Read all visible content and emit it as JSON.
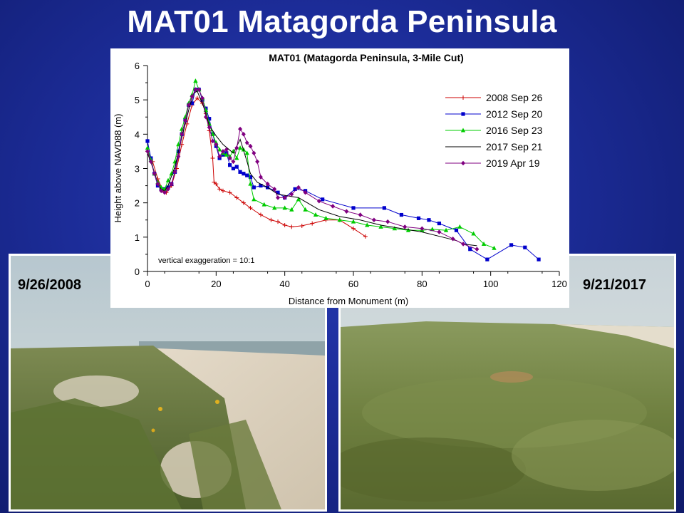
{
  "slide": {
    "title": "MAT01 Matagorda Peninsula"
  },
  "photos": {
    "left": {
      "date_label": "9/26/2008"
    },
    "right": {
      "date_label": "9/21/2017"
    }
  },
  "chart_data": {
    "type": "line",
    "title": "MAT01 (Matagorda Peninsula, 3-Mile Cut)",
    "xlabel": "Distance from Monument (m)",
    "ylabel": "Height above NAVD88 (m)",
    "xlim": [
      0,
      120
    ],
    "ylim": [
      0,
      6
    ],
    "xticks": [
      0,
      20,
      40,
      60,
      80,
      100,
      120
    ],
    "yticks": [
      0,
      1,
      2,
      3,
      4,
      5,
      6
    ],
    "grid": false,
    "legend_position": "top-right",
    "annotation": "vertical exaggeration = 10:1",
    "series": [
      {
        "name": "2008 Sep 26",
        "color": "#cc0000",
        "marker": "plus",
        "points": [
          [
            0,
            3.5
          ],
          [
            1.5,
            3.2
          ],
          [
            3,
            2.7
          ],
          [
            4.5,
            2.35
          ],
          [
            5.5,
            2.3
          ],
          [
            7,
            2.5
          ],
          [
            8.5,
            3.0
          ],
          [
            10,
            3.7
          ],
          [
            11.5,
            4.3
          ],
          [
            13,
            4.85
          ],
          [
            14.5,
            5.05
          ],
          [
            16,
            4.9
          ],
          [
            17,
            4.6
          ],
          [
            18,
            4.1
          ],
          [
            19,
            3.3
          ],
          [
            19.4,
            2.6
          ],
          [
            20,
            2.55
          ],
          [
            21,
            2.4
          ],
          [
            22,
            2.35
          ],
          [
            24,
            2.3
          ],
          [
            26,
            2.15
          ],
          [
            28,
            2.0
          ],
          [
            30,
            1.85
          ],
          [
            33,
            1.65
          ],
          [
            36,
            1.5
          ],
          [
            38,
            1.45
          ],
          [
            40,
            1.35
          ],
          [
            42,
            1.3
          ],
          [
            45,
            1.33
          ],
          [
            48,
            1.4
          ],
          [
            52,
            1.5
          ],
          [
            56,
            1.5
          ],
          [
            60,
            1.25
          ],
          [
            63.5,
            1.02
          ]
        ]
      },
      {
        "name": "2012 Sep 20",
        "color": "#0000cc",
        "marker": "square",
        "points": [
          [
            0,
            3.8
          ],
          [
            1,
            3.3
          ],
          [
            2,
            2.85
          ],
          [
            3,
            2.5
          ],
          [
            4,
            2.4
          ],
          [
            5,
            2.4
          ],
          [
            6,
            2.45
          ],
          [
            7,
            2.55
          ],
          [
            8,
            2.9
          ],
          [
            9,
            3.5
          ],
          [
            10,
            4.0
          ],
          [
            11,
            4.4
          ],
          [
            12,
            4.85
          ],
          [
            13,
            4.9
          ],
          [
            14,
            5.3
          ],
          [
            15,
            5.3
          ],
          [
            16,
            5.0
          ],
          [
            17,
            4.75
          ],
          [
            18,
            4.45
          ],
          [
            19,
            4.0
          ],
          [
            20,
            3.65
          ],
          [
            21,
            3.3
          ],
          [
            22,
            3.4
          ],
          [
            23,
            3.45
          ],
          [
            24,
            3.1
          ],
          [
            25,
            3.0
          ],
          [
            26,
            3.05
          ],
          [
            27,
            2.9
          ],
          [
            28,
            2.85
          ],
          [
            29,
            2.8
          ],
          [
            30,
            2.75
          ],
          [
            31,
            2.45
          ],
          [
            33,
            2.5
          ],
          [
            35,
            2.45
          ],
          [
            38,
            2.3
          ],
          [
            40,
            2.15
          ],
          [
            43,
            2.4
          ],
          [
            46,
            2.35
          ],
          [
            51,
            2.1
          ],
          [
            60,
            1.85
          ],
          [
            69,
            1.85
          ],
          [
            74,
            1.65
          ],
          [
            79,
            1.55
          ],
          [
            82,
            1.5
          ],
          [
            85,
            1.4
          ],
          [
            90,
            1.2
          ],
          [
            94,
            0.65
          ],
          [
            99,
            0.35
          ],
          [
            106,
            0.77
          ],
          [
            110,
            0.7
          ],
          [
            114,
            0.35
          ]
        ]
      },
      {
        "name": "2016 Sep 23",
        "color": "#00cc00",
        "marker": "triangle",
        "points": [
          [
            0,
            3.6
          ],
          [
            1,
            3.25
          ],
          [
            2,
            2.85
          ],
          [
            3,
            2.6
          ],
          [
            4,
            2.45
          ],
          [
            5,
            2.4
          ],
          [
            6,
            2.65
          ],
          [
            7,
            2.85
          ],
          [
            8,
            3.2
          ],
          [
            9,
            3.7
          ],
          [
            10,
            4.15
          ],
          [
            11,
            4.5
          ],
          [
            12,
            4.9
          ],
          [
            13,
            5.15
          ],
          [
            14,
            5.55
          ],
          [
            15,
            5.3
          ],
          [
            16,
            5.05
          ],
          [
            17,
            4.7
          ],
          [
            18,
            4.3
          ],
          [
            19,
            4.0
          ],
          [
            20,
            3.75
          ],
          [
            21,
            3.55
          ],
          [
            22,
            3.45
          ],
          [
            23,
            3.4
          ],
          [
            24,
            3.35
          ],
          [
            25,
            3.5
          ],
          [
            26,
            3.3
          ],
          [
            27,
            3.6
          ],
          [
            28,
            3.55
          ],
          [
            29,
            3.45
          ],
          [
            30,
            2.55
          ],
          [
            31,
            2.1
          ],
          [
            34,
            1.95
          ],
          [
            37,
            1.85
          ],
          [
            40,
            1.85
          ],
          [
            42,
            1.8
          ],
          [
            44,
            2.1
          ],
          [
            46,
            1.8
          ],
          [
            49,
            1.65
          ],
          [
            52,
            1.55
          ],
          [
            56,
            1.5
          ],
          [
            60,
            1.45
          ],
          [
            64,
            1.35
          ],
          [
            68,
            1.3
          ],
          [
            72,
            1.25
          ],
          [
            76,
            1.2
          ],
          [
            80,
            1.2
          ],
          [
            83,
            1.23
          ],
          [
            87,
            1.2
          ],
          [
            91,
            1.3
          ],
          [
            95,
            1.1
          ],
          [
            98,
            0.8
          ],
          [
            101,
            0.68
          ]
        ]
      },
      {
        "name": "2017 Sep 21",
        "color": "#000000",
        "marker": "none",
        "points": [
          [
            0,
            3.45
          ],
          [
            2,
            2.9
          ],
          [
            3,
            2.55
          ],
          [
            4,
            2.4
          ],
          [
            5,
            2.35
          ],
          [
            6,
            2.5
          ],
          [
            8,
            3.05
          ],
          [
            10,
            3.9
          ],
          [
            12,
            4.7
          ],
          [
            13.5,
            5.2
          ],
          [
            14.5,
            5.25
          ],
          [
            16,
            4.9
          ],
          [
            17,
            4.6
          ],
          [
            18,
            4.25
          ],
          [
            20,
            3.95
          ],
          [
            22,
            3.7
          ],
          [
            25,
            3.45
          ],
          [
            27,
            3.85
          ],
          [
            29,
            3.2
          ],
          [
            30,
            2.85
          ],
          [
            32,
            2.6
          ],
          [
            35,
            2.45
          ],
          [
            38,
            2.25
          ],
          [
            41,
            2.2
          ],
          [
            44,
            2.15
          ],
          [
            50,
            1.8
          ],
          [
            56,
            1.6
          ],
          [
            62,
            1.5
          ],
          [
            68,
            1.35
          ],
          [
            74,
            1.25
          ],
          [
            80,
            1.15
          ],
          [
            86,
            1.0
          ],
          [
            90,
            0.9
          ],
          [
            92,
            0.8
          ],
          [
            96,
            0.75
          ]
        ]
      },
      {
        "name": "2019 Apr 19",
        "color": "#800080",
        "marker": "diamond",
        "points": [
          [
            0,
            3.5
          ],
          [
            1,
            3.2
          ],
          [
            2,
            2.85
          ],
          [
            3,
            2.55
          ],
          [
            4,
            2.35
          ],
          [
            5,
            2.3
          ],
          [
            6,
            2.4
          ],
          [
            7,
            2.55
          ],
          [
            8,
            2.9
          ],
          [
            9,
            3.35
          ],
          [
            10,
            4.0
          ],
          [
            11,
            4.4
          ],
          [
            12,
            4.85
          ],
          [
            13,
            5.1
          ],
          [
            14,
            5.3
          ],
          [
            15,
            5.3
          ],
          [
            16,
            5.05
          ],
          [
            17,
            4.5
          ],
          [
            18,
            4.2
          ],
          [
            19,
            3.8
          ],
          [
            20,
            3.7
          ],
          [
            21,
            3.35
          ],
          [
            22,
            3.5
          ],
          [
            23,
            3.55
          ],
          [
            24,
            3.3
          ],
          [
            25,
            3.2
          ],
          [
            26,
            3.6
          ],
          [
            27,
            4.15
          ],
          [
            28,
            4.0
          ],
          [
            29,
            3.75
          ],
          [
            30,
            3.65
          ],
          [
            31,
            3.45
          ],
          [
            32,
            3.2
          ],
          [
            33,
            2.75
          ],
          [
            35,
            2.55
          ],
          [
            37,
            2.4
          ],
          [
            38,
            2.15
          ],
          [
            40,
            2.15
          ],
          [
            42,
            2.25
          ],
          [
            44,
            2.45
          ],
          [
            46,
            2.3
          ],
          [
            50,
            2.05
          ],
          [
            54,
            1.9
          ],
          [
            58,
            1.75
          ],
          [
            62,
            1.65
          ],
          [
            66,
            1.5
          ],
          [
            70,
            1.45
          ],
          [
            75,
            1.3
          ],
          [
            80,
            1.25
          ],
          [
            85,
            1.15
          ],
          [
            89,
            0.95
          ],
          [
            92,
            0.8
          ],
          [
            96,
            0.65
          ]
        ]
      }
    ]
  }
}
